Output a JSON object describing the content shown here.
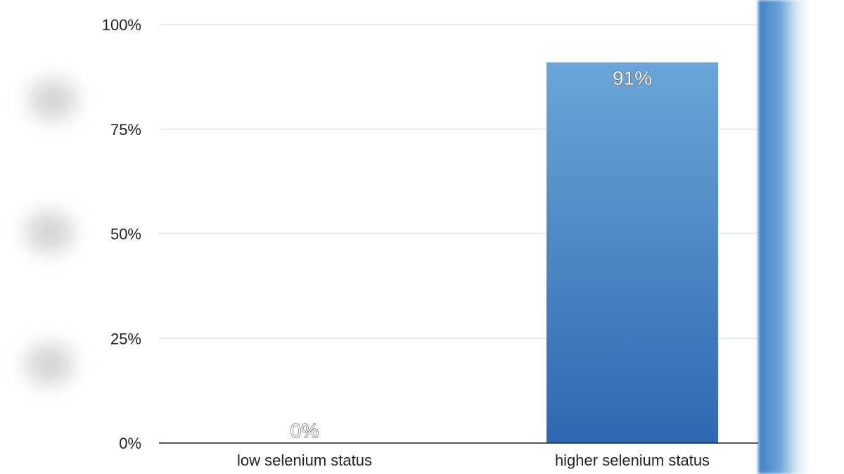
{
  "chart_data": {
    "type": "bar",
    "categories": [
      "low selenium status",
      "higher selenium status"
    ],
    "values": [
      0,
      91
    ],
    "data_labels": [
      "0%",
      "91%"
    ],
    "title": "",
    "xlabel": "",
    "ylabel": "",
    "ylim": [
      0,
      100
    ],
    "y_ticks": [
      0,
      25,
      50,
      75,
      100
    ],
    "y_tick_labels": [
      "0%",
      "25%",
      "50%",
      "75%",
      "100%"
    ],
    "grid": true,
    "legend": "none",
    "colors": {
      "bar_top": "#6aa6da",
      "bar_bottom": "#2f68b0",
      "gridline": "#d9d9d9",
      "axis": "#222222",
      "text": "#222222"
    }
  }
}
